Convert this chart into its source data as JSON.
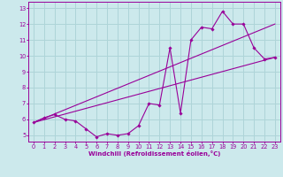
{
  "xlabel": "Windchill (Refroidissement éolien,°C)",
  "bg_color": "#cce9ec",
  "line_color": "#990099",
  "xlim": [
    -0.5,
    23.5
  ],
  "ylim": [
    4.6,
    13.4
  ],
  "xticks": [
    0,
    1,
    2,
    3,
    4,
    5,
    6,
    7,
    8,
    9,
    10,
    11,
    12,
    13,
    14,
    15,
    16,
    17,
    18,
    19,
    20,
    21,
    22,
    23
  ],
  "yticks": [
    5,
    6,
    7,
    8,
    9,
    10,
    11,
    12,
    13
  ],
  "series1_x": [
    0,
    1,
    2,
    3,
    4,
    5,
    6,
    7,
    8,
    9,
    10,
    11,
    12,
    13,
    14,
    15,
    16,
    17,
    18,
    19,
    20,
    21,
    22,
    23
  ],
  "series1_y": [
    5.8,
    6.1,
    6.3,
    6.0,
    5.9,
    5.4,
    4.9,
    5.1,
    5.0,
    5.1,
    5.6,
    7.0,
    6.9,
    10.5,
    6.4,
    11.0,
    11.8,
    11.7,
    12.8,
    12.0,
    12.0,
    10.5,
    9.8,
    9.9
  ],
  "series2_x": [
    0,
    23
  ],
  "series2_y": [
    5.8,
    9.9
  ],
  "series3_x": [
    0,
    23
  ],
  "series3_y": [
    5.8,
    12.0
  ],
  "grid_color": "#aed4d8",
  "xlabel_fontsize": 5.0,
  "tick_fontsize": 4.8
}
